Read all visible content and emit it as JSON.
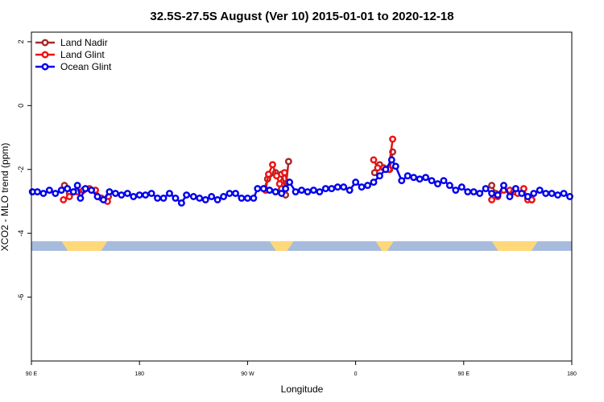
{
  "chart_data": {
    "type": "line",
    "title": "32.5S-27.5S August (Ver 10)   2015-01-01 to 2020-12-18",
    "xlabel": "Longitude",
    "ylabel": "XCO2 - MLO trend (ppm)",
    "xlim": [
      -90,
      180
    ],
    "ylim": [
      -8,
      2.3
    ],
    "y_ticks": [
      2,
      0,
      -2,
      -4,
      -6
    ],
    "x_ticks": [
      {
        "value": -90,
        "label": "90 E"
      },
      {
        "value": -36,
        "label": "180"
      },
      {
        "value": 18,
        "label": "90 W"
      },
      {
        "value": 72,
        "label": "0"
      },
      {
        "value": 126,
        "label": "90 E"
      },
      {
        "value": 180,
        "label": "180"
      }
    ],
    "legend_position": "top-left",
    "grid": false,
    "land_mask": {
      "y": -4.4,
      "ocean_color": "#a7bcdd",
      "land_color": "#ffd87a",
      "land_segments": [
        [
          -75,
          -52
        ],
        [
          29,
          41
        ],
        [
          82,
          91
        ],
        [
          140,
          163
        ]
      ]
    },
    "series": [
      {
        "name": "Land Nadir",
        "color": "#a52a2a",
        "segments": [
          [
            [
              -73.5,
              -2.5
            ],
            [
              -71,
              -2.75
            ]
          ],
          [
            [
              -53,
              -2.95
            ],
            [
              -51.5,
              -2.85
            ]
          ],
          [
            [
              26.5,
              -2.6
            ],
            [
              28,
              -2.3
            ],
            [
              32,
              -2.1
            ],
            [
              35,
              -2.15
            ],
            [
              37,
              -2.6
            ],
            [
              38.5,
              -1.75
            ]
          ],
          [
            [
              35,
              -2.6
            ],
            [
              37,
              -2.8
            ]
          ],
          [
            [
              81.5,
              -2.1
            ],
            [
              84,
              -1.85
            ],
            [
              86,
              -1.95
            ],
            [
              89,
              -2.0
            ],
            [
              90.5,
              -1.45
            ]
          ],
          [
            [
              140,
              -2.5
            ],
            [
              142,
              -2.75
            ]
          ],
          [
            [
              158,
              -2.9
            ],
            [
              160,
              -2.95
            ]
          ]
        ]
      },
      {
        "name": "Land Glint",
        "color": "#ee1111",
        "segments": [
          [
            [
              -74,
              -2.95
            ],
            [
              -71,
              -2.85
            ],
            [
              -67,
              -2.7
            ],
            [
              -64,
              -2.65
            ],
            [
              -61,
              -2.6
            ],
            [
              -58,
              -2.65
            ],
            [
              -55,
              -2.9
            ],
            [
              -52,
              -3.0
            ]
          ],
          [
            [
              27,
              -2.65
            ],
            [
              28.5,
              -2.15
            ],
            [
              30.5,
              -1.85
            ],
            [
              32.5,
              -2.2
            ],
            [
              34,
              -2.45
            ],
            [
              36.5,
              -2.1
            ],
            [
              38,
              -2.4
            ]
          ],
          [
            [
              81,
              -1.7
            ],
            [
              83,
              -1.95
            ],
            [
              86,
              -1.95
            ],
            [
              88.5,
              -2.0
            ],
            [
              90.5,
              -1.05
            ]
          ],
          [
            [
              140,
              -2.95
            ],
            [
              143,
              -2.85
            ],
            [
              146,
              -2.65
            ],
            [
              149,
              -2.65
            ],
            [
              151,
              -2.7
            ],
            [
              153,
              -2.75
            ],
            [
              156,
              -2.6
            ],
            [
              158,
              -2.95
            ],
            [
              160,
              -2.95
            ]
          ]
        ]
      },
      {
        "name": "Ocean Glint",
        "color": "#0000ee",
        "segments": [
          [
            [
              -89.5,
              -2.7
            ],
            [
              -87,
              -2.7
            ],
            [
              -84,
              -2.75
            ],
            [
              -81,
              -2.65
            ],
            [
              -78,
              -2.75
            ],
            [
              -75,
              -2.65
            ],
            [
              -72,
              -2.6
            ],
            [
              -69,
              -2.7
            ],
            [
              -67,
              -2.5
            ],
            [
              -65.5,
              -2.9
            ],
            [
              -63,
              -2.6
            ],
            [
              -60,
              -2.65
            ],
            [
              -57,
              -2.85
            ],
            [
              -54,
              -2.95
            ],
            [
              -51,
              -2.7
            ],
            [
              -48,
              -2.75
            ],
            [
              -45,
              -2.8
            ],
            [
              -42,
              -2.75
            ],
            [
              -39,
              -2.85
            ],
            [
              -36,
              -2.8
            ],
            [
              -33,
              -2.8
            ],
            [
              -30,
              -2.75
            ],
            [
              -27,
              -2.9
            ],
            [
              -24,
              -2.9
            ],
            [
              -21,
              -2.75
            ],
            [
              -18,
              -2.9
            ],
            [
              -15,
              -3.05
            ],
            [
              -12.5,
              -2.8
            ],
            [
              -9,
              -2.85
            ],
            [
              -6,
              -2.9
            ],
            [
              -3,
              -2.95
            ],
            [
              0,
              -2.85
            ],
            [
              3,
              -2.95
            ],
            [
              6,
              -2.85
            ],
            [
              9,
              -2.75
            ],
            [
              12,
              -2.75
            ],
            [
              15,
              -2.9
            ],
            [
              18,
              -2.9
            ],
            [
              21,
              -2.9
            ],
            [
              23,
              -2.6
            ],
            [
              26,
              -2.6
            ],
            [
              29,
              -2.65
            ],
            [
              32,
              -2.7
            ],
            [
              35,
              -2.75
            ],
            [
              37,
              -2.6
            ],
            [
              39,
              -2.4
            ],
            [
              42,
              -2.7
            ],
            [
              45,
              -2.65
            ],
            [
              48,
              -2.7
            ],
            [
              51,
              -2.65
            ],
            [
              54,
              -2.7
            ],
            [
              57,
              -2.6
            ],
            [
              60,
              -2.6
            ],
            [
              63,
              -2.55
            ],
            [
              66,
              -2.55
            ],
            [
              69,
              -2.65
            ],
            [
              72,
              -2.4
            ],
            [
              75,
              -2.55
            ],
            [
              78,
              -2.5
            ],
            [
              81,
              -2.4
            ],
            [
              84,
              -2.2
            ],
            [
              87,
              -2.0
            ],
            [
              90,
              -1.7
            ],
            [
              92,
              -1.9
            ],
            [
              95,
              -2.35
            ],
            [
              98,
              -2.2
            ],
            [
              101,
              -2.25
            ],
            [
              104,
              -2.3
            ],
            [
              107,
              -2.25
            ],
            [
              110,
              -2.35
            ],
            [
              113,
              -2.45
            ],
            [
              116,
              -2.35
            ],
            [
              119,
              -2.5
            ],
            [
              122,
              -2.65
            ],
            [
              125,
              -2.55
            ],
            [
              128,
              -2.7
            ],
            [
              131,
              -2.7
            ],
            [
              134,
              -2.75
            ],
            [
              137,
              -2.6
            ],
            [
              140,
              -2.75
            ],
            [
              143,
              -2.8
            ],
            [
              146,
              -2.5
            ],
            [
              149,
              -2.85
            ],
            [
              152,
              -2.6
            ],
            [
              155,
              -2.75
            ],
            [
              158,
              -2.85
            ],
            [
              161,
              -2.75
            ],
            [
              164,
              -2.65
            ],
            [
              167,
              -2.75
            ],
            [
              170,
              -2.75
            ],
            [
              173,
              -2.8
            ],
            [
              176,
              -2.75
            ],
            [
              179,
              -2.85
            ]
          ]
        ]
      }
    ]
  }
}
